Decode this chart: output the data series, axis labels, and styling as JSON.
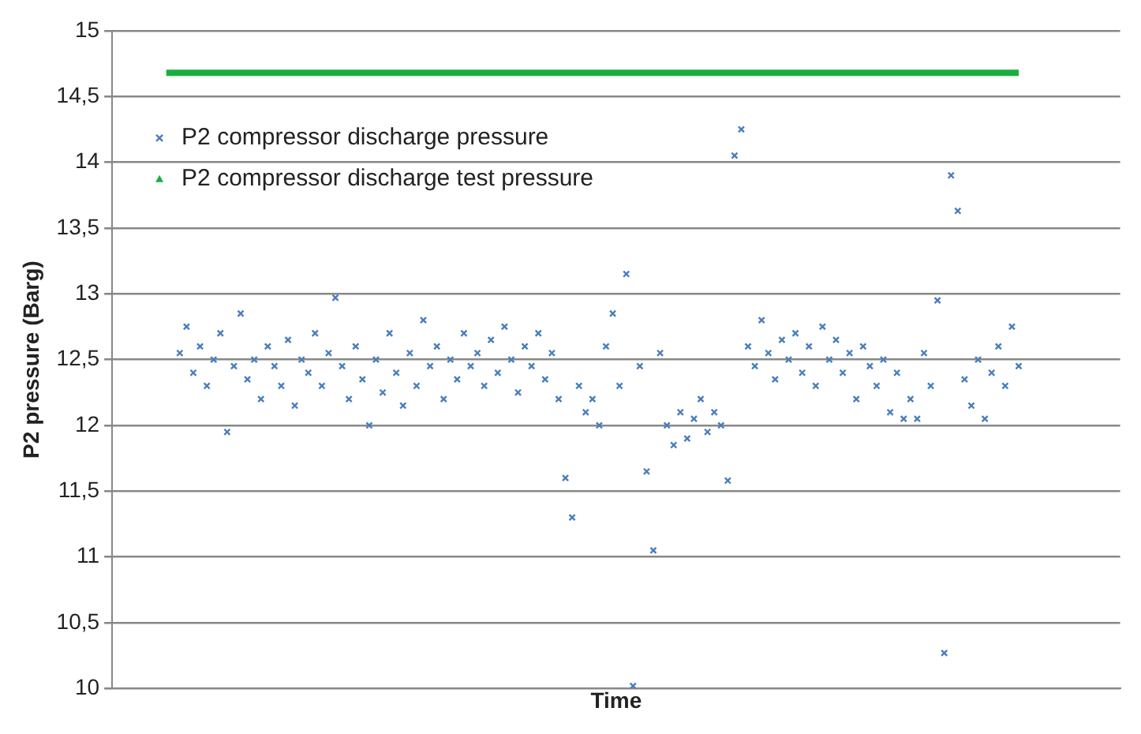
{
  "chart_data": {
    "type": "scatter",
    "xlabel": "Time",
    "ylabel": "P2 pressure (Barg)",
    "categories": [
      null,
      null,
      null,
      null,
      null,
      null,
      null,
      null,
      null,
      null,
      null,
      null,
      null,
      null,
      null,
      null,
      null,
      null,
      null,
      null,
      null,
      null,
      null,
      null,
      null,
      null,
      null,
      null,
      null,
      null,
      null,
      null,
      null,
      null,
      null,
      null,
      null,
      null,
      null,
      null,
      null,
      null,
      null,
      null,
      null,
      null,
      null,
      null,
      null,
      null,
      null,
      null,
      null,
      null,
      null,
      null,
      null,
      null,
      null,
      null,
      null,
      null,
      null,
      null,
      null,
      null,
      null,
      null,
      null,
      null,
      null,
      null,
      null,
      null,
      null,
      null,
      null,
      null,
      null,
      null,
      null,
      null,
      null,
      null,
      null,
      null,
      null,
      null,
      null,
      null,
      null,
      null,
      null,
      null,
      null,
      null,
      null,
      null,
      null,
      null,
      null,
      null,
      null,
      null,
      null,
      null,
      null,
      null,
      null,
      null,
      null,
      null,
      null,
      null,
      null,
      null,
      null,
      null,
      null,
      null,
      null,
      null,
      null,
      null,
      null,
      null,
      null,
      null,
      null,
      null,
      null,
      null,
      null,
      null,
      null,
      null,
      null,
      null,
      null,
      null,
      null,
      null,
      null,
      null,
      null,
      null,
      null,
      null,
      null,
      null
    ],
    "series": [
      {
        "name": "P2 compressor discharge pressure",
        "marker": "cross",
        "color": "#4a7ebb",
        "values": [
          null,
          null,
          null,
          null,
          null,
          null,
          null,
          null,
          null,
          null,
          12.55,
          12.75,
          12.4,
          12.6,
          12.3,
          12.5,
          12.7,
          11.95,
          12.45,
          12.85,
          12.35,
          12.5,
          12.2,
          12.6,
          12.45,
          12.3,
          12.65,
          12.15,
          12.5,
          12.4,
          12.7,
          12.3,
          12.55,
          12.97,
          12.45,
          12.2,
          12.6,
          12.35,
          12.0,
          12.5,
          12.25,
          12.7,
          12.4,
          12.15,
          12.55,
          12.3,
          12.8,
          12.45,
          12.6,
          12.2,
          12.5,
          12.35,
          12.7,
          12.45,
          12.55,
          12.3,
          12.65,
          12.4,
          12.75,
          12.5,
          12.25,
          12.6,
          12.45,
          12.7,
          12.35,
          12.55,
          12.2,
          11.6,
          11.3,
          12.3,
          12.1,
          12.2,
          12.0,
          12.6,
          12.85,
          12.3,
          13.15,
          10.02,
          12.45,
          11.65,
          11.05,
          12.55,
          12.0,
          11.85,
          12.1,
          11.9,
          12.05,
          12.2,
          11.95,
          12.1,
          12.0,
          11.58,
          14.05,
          14.25,
          12.6,
          12.45,
          12.8,
          12.55,
          12.35,
          12.65,
          12.5,
          12.7,
          12.4,
          12.6,
          12.3,
          12.75,
          12.5,
          12.65,
          12.4,
          12.55,
          12.2,
          12.6,
          12.45,
          12.3,
          12.5,
          12.1,
          12.4,
          12.05,
          12.2,
          12.05,
          12.55,
          12.3,
          12.95,
          10.27,
          13.9,
          13.63,
          12.35,
          12.15,
          12.5,
          12.05,
          12.4,
          12.6,
          12.3,
          12.75,
          12.45,
          null,
          null,
          null,
          null,
          null,
          null,
          null,
          null,
          null,
          null,
          null,
          null,
          null,
          null,
          null
        ]
      },
      {
        "name": "P2 compressor discharge test pressure",
        "type": "line",
        "marker": "none",
        "color": "#1aae3e",
        "values": [
          null,
          null,
          null,
          null,
          null,
          null,
          null,
          null,
          14.68,
          14.68,
          14.68,
          14.68,
          14.68,
          14.68,
          14.68,
          14.68,
          14.68,
          14.68,
          14.68,
          14.68,
          14.68,
          14.68,
          14.68,
          14.68,
          14.68,
          14.68,
          14.68,
          14.68,
          14.68,
          14.68,
          14.68,
          14.68,
          14.68,
          14.68,
          14.68,
          14.68,
          14.68,
          14.68,
          14.68,
          14.68,
          14.68,
          14.68,
          14.68,
          14.68,
          14.68,
          14.68,
          14.68,
          14.68,
          14.68,
          14.68,
          14.68,
          14.68,
          14.68,
          14.68,
          14.68,
          14.68,
          14.68,
          14.68,
          14.68,
          14.68,
          14.68,
          14.68,
          14.68,
          14.68,
          14.68,
          14.68,
          14.68,
          14.68,
          14.68,
          14.68,
          14.68,
          14.68,
          14.68,
          14.68,
          14.68,
          14.68,
          14.68,
          14.68,
          14.68,
          14.68,
          14.68,
          14.68,
          14.68,
          14.68,
          14.68,
          14.68,
          14.68,
          14.68,
          14.68,
          14.68,
          14.68,
          14.68,
          14.68,
          14.68,
          14.68,
          14.68,
          14.68,
          14.68,
          14.68,
          14.68,
          14.68,
          14.68,
          14.68,
          14.68,
          14.68,
          14.68,
          14.68,
          14.68,
          14.68,
          14.68,
          14.68,
          14.68,
          14.68,
          14.68,
          14.68,
          14.68,
          14.68,
          14.68,
          14.68,
          14.68,
          14.68,
          14.68,
          14.68,
          14.68,
          14.68,
          14.68,
          14.68,
          14.68,
          14.68,
          14.68,
          14.68,
          14.68,
          14.68,
          14.68,
          14.68,
          null,
          null,
          null,
          null,
          null,
          null,
          null,
          null,
          null,
          null,
          null,
          null,
          null,
          null,
          null
        ]
      }
    ],
    "ylim": [
      10,
      15
    ],
    "yticks": [
      10,
      {
        "value": 10.5,
        "label": "10,5"
      },
      11,
      {
        "value": 11.5,
        "label": "11,5"
      },
      12,
      {
        "value": 12.5,
        "label": "12,5"
      },
      13,
      {
        "value": 13.5,
        "label": "13,5"
      },
      14,
      {
        "value": 14.5,
        "label": "14,5"
      },
      15
    ],
    "grid": "y",
    "legend": "top left",
    "tick_labels": "y"
  }
}
